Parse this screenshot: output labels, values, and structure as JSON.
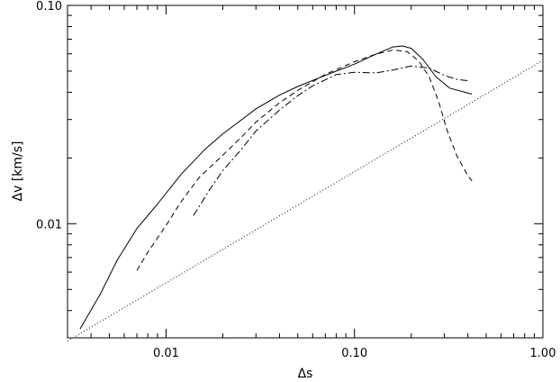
{
  "chart_data": {
    "type": "line",
    "title": "",
    "xlabel": "Δs",
    "ylabel": "Δv [km/s]",
    "xscale": "log",
    "yscale": "log",
    "xlim": [
      0.003,
      1.0
    ],
    "ylim": [
      0.003,
      0.1
    ],
    "grid": false,
    "legend": "none",
    "x_ticks": [
      {
        "value": 0.01,
        "label": "0.01"
      },
      {
        "value": 0.1,
        "label": "0.10"
      },
      {
        "value": 1.0,
        "label": "1.00"
      }
    ],
    "y_ticks": [
      {
        "value": 0.01,
        "label": "0.01"
      },
      {
        "value": 0.1,
        "label": "0.10"
      }
    ],
    "series": [
      {
        "style": "solid",
        "points": [
          [
            0.0035,
            0.0033
          ],
          [
            0.0045,
            0.0048
          ],
          [
            0.0055,
            0.0068
          ],
          [
            0.007,
            0.0095
          ],
          [
            0.009,
            0.0123
          ],
          [
            0.012,
            0.0168
          ],
          [
            0.016,
            0.0218
          ],
          [
            0.02,
            0.0258
          ],
          [
            0.025,
            0.0298
          ],
          [
            0.03,
            0.0336
          ],
          [
            0.04,
            0.0388
          ],
          [
            0.05,
            0.0425
          ],
          [
            0.07,
            0.0478
          ],
          [
            0.1,
            0.0538
          ],
          [
            0.13,
            0.0598
          ],
          [
            0.16,
            0.0645
          ],
          [
            0.18,
            0.0652
          ],
          [
            0.2,
            0.0636
          ],
          [
            0.23,
            0.0568
          ],
          [
            0.27,
            0.0472
          ],
          [
            0.32,
            0.0418
          ],
          [
            0.42,
            0.0392
          ]
        ]
      },
      {
        "style": "dashed",
        "points": [
          [
            0.007,
            0.0061
          ],
          [
            0.008,
            0.0074
          ],
          [
            0.01,
            0.0098
          ],
          [
            0.012,
            0.0126
          ],
          [
            0.015,
            0.0163
          ],
          [
            0.02,
            0.0206
          ],
          [
            0.025,
            0.0248
          ],
          [
            0.03,
            0.0292
          ],
          [
            0.04,
            0.0358
          ],
          [
            0.05,
            0.0408
          ],
          [
            0.07,
            0.0483
          ],
          [
            0.1,
            0.0552
          ],
          [
            0.13,
            0.0598
          ],
          [
            0.16,
            0.0625
          ],
          [
            0.19,
            0.0615
          ],
          [
            0.22,
            0.0555
          ],
          [
            0.25,
            0.0468
          ],
          [
            0.28,
            0.0362
          ],
          [
            0.31,
            0.0268
          ],
          [
            0.35,
            0.0204
          ],
          [
            0.4,
            0.0166
          ],
          [
            0.42,
            0.0157
          ]
        ]
      },
      {
        "style": "dash-dot",
        "points": [
          [
            0.014,
            0.0109
          ],
          [
            0.017,
            0.0143
          ],
          [
            0.02,
            0.0175
          ],
          [
            0.025,
            0.0218
          ],
          [
            0.03,
            0.0266
          ],
          [
            0.04,
            0.0331
          ],
          [
            0.05,
            0.0386
          ],
          [
            0.06,
            0.0428
          ],
          [
            0.08,
            0.0482
          ],
          [
            0.1,
            0.0494
          ],
          [
            0.13,
            0.0491
          ],
          [
            0.16,
            0.0506
          ],
          [
            0.2,
            0.0528
          ],
          [
            0.25,
            0.0516
          ],
          [
            0.3,
            0.0478
          ],
          [
            0.35,
            0.0458
          ],
          [
            0.4,
            0.0452
          ]
        ]
      },
      {
        "style": "dotted",
        "points": [
          [
            0.003,
            0.0029
          ],
          [
            1.0,
            0.056
          ]
        ]
      }
    ]
  }
}
